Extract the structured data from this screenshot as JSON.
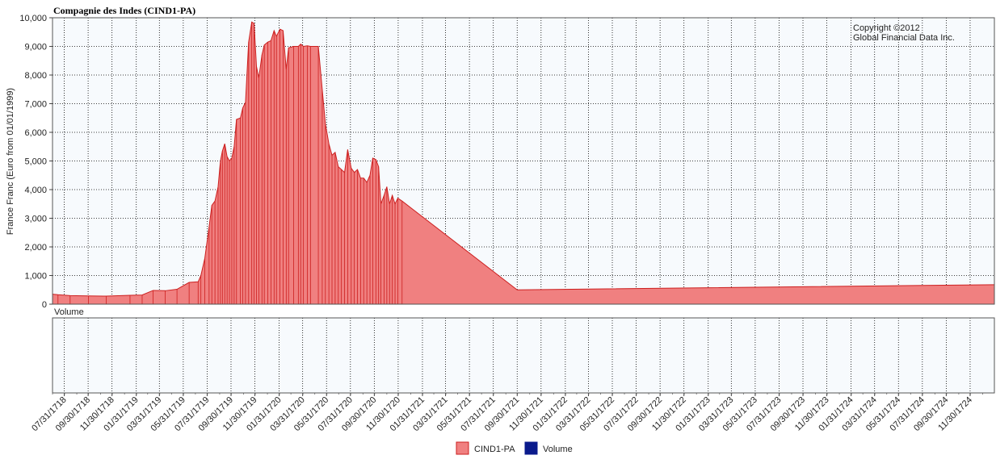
{
  "title": "Compagnie des Indes (CIND1-PA)",
  "copyright": [
    "Copyright ©2012",
    "Global Financial Data Inc."
  ],
  "volume_label": "Volume",
  "colors": {
    "price_fill": "#f08080",
    "price_line": "#cc1f1f",
    "volume": "#0a1a8c",
    "plot_bg": "#f7fafd",
    "grid": "#000000"
  },
  "legend": [
    {
      "label": "CIND1-PA",
      "color": "#f08080",
      "border": "#cc1f1f"
    },
    {
      "label": "Volume",
      "color": "#0a1a8c",
      "border": "#0a1a8c"
    }
  ],
  "chart_data": {
    "type": "area",
    "title": "Compagnie des Indes (CIND1-PA)",
    "ylabel": "France Franc (Euro from 01/01/1999)",
    "xlabel": "",
    "ylim": [
      0,
      10000
    ],
    "yticks": [
      "10,000",
      "9,000",
      "8,000",
      "7,000",
      "6,000",
      "5,000",
      "4,000",
      "3,000",
      "2,000",
      "1,000",
      "0"
    ],
    "xlim": [
      "1718-07-01",
      "1725-01-31"
    ],
    "xtick_labels": [
      "07/31/1718",
      "09/30/1718",
      "11/30/1718",
      "01/31/1719",
      "03/31/1719",
      "05/31/1719",
      "07/31/1719",
      "09/30/1719",
      "11/30/1719",
      "01/31/1720",
      "03/31/1720",
      "05/31/1720",
      "07/31/1720",
      "09/30/1720",
      "11/30/1720",
      "01/31/1721",
      "03/31/1721",
      "05/31/1721",
      "07/31/1721",
      "09/30/1721",
      "11/30/1721",
      "01/31/1722",
      "03/31/1722",
      "05/31/1722",
      "07/31/1722",
      "09/30/1722",
      "11/30/1722",
      "01/31/1723",
      "03/31/1723",
      "05/31/1723",
      "07/31/1723",
      "09/30/1723",
      "11/30/1723",
      "01/31/1724",
      "03/31/1724",
      "05/31/1724",
      "07/31/1724",
      "09/30/1724",
      "11/30/1724"
    ],
    "grid": true,
    "legend_position": "bottom-center",
    "series": [
      {
        "name": "CIND1-PA",
        "points": [
          [
            "1718-07-01",
            350
          ],
          [
            "1718-07-15",
            330
          ],
          [
            "1718-08-15",
            300
          ],
          [
            "1718-10-01",
            290
          ],
          [
            "1718-11-15",
            280
          ],
          [
            "1719-01-15",
            310
          ],
          [
            "1719-02-15",
            320
          ],
          [
            "1719-03-15",
            480
          ],
          [
            "1719-04-15",
            470
          ],
          [
            "1719-05-15",
            520
          ],
          [
            "1719-06-15",
            760
          ],
          [
            "1719-07-08",
            780
          ],
          [
            "1719-07-15",
            1000
          ],
          [
            "1719-07-25",
            1600
          ],
          [
            "1719-08-05",
            2700
          ],
          [
            "1719-08-12",
            3450
          ],
          [
            "1719-08-20",
            3600
          ],
          [
            "1719-08-28",
            4100
          ],
          [
            "1719-09-03",
            5000
          ],
          [
            "1719-09-08",
            5350
          ],
          [
            "1719-09-14",
            5600
          ],
          [
            "1719-09-20",
            5150
          ],
          [
            "1719-09-26",
            5000
          ],
          [
            "1719-10-02",
            5100
          ],
          [
            "1719-10-08",
            5500
          ],
          [
            "1719-10-14",
            6450
          ],
          [
            "1719-10-24",
            6500
          ],
          [
            "1719-10-30",
            6850
          ],
          [
            "1719-11-06",
            7050
          ],
          [
            "1719-11-14",
            9150
          ],
          [
            "1719-11-22",
            9850
          ],
          [
            "1719-11-28",
            9800
          ],
          [
            "1719-12-04",
            8300
          ],
          [
            "1719-12-10",
            7900
          ],
          [
            "1719-12-18",
            8700
          ],
          [
            "1719-12-24",
            9050
          ],
          [
            "1720-01-02",
            9150
          ],
          [
            "1720-01-10",
            9200
          ],
          [
            "1720-01-18",
            9550
          ],
          [
            "1720-01-24",
            9350
          ],
          [
            "1720-02-02",
            9600
          ],
          [
            "1720-02-10",
            9550
          ],
          [
            "1720-02-18",
            8200
          ],
          [
            "1720-02-24",
            8950
          ],
          [
            "1720-03-08",
            9000
          ],
          [
            "1720-03-20",
            9000
          ],
          [
            "1720-03-26",
            9080
          ],
          [
            "1720-04-02",
            9000
          ],
          [
            "1720-04-12",
            9020
          ],
          [
            "1720-04-20",
            9000
          ],
          [
            "1720-05-10",
            9000
          ],
          [
            "1720-05-20",
            7500
          ],
          [
            "1720-05-28",
            6300
          ],
          [
            "1720-06-06",
            5600
          ],
          [
            "1720-06-14",
            5200
          ],
          [
            "1720-06-22",
            5300
          ],
          [
            "1720-06-30",
            4800
          ],
          [
            "1720-07-08",
            4700
          ],
          [
            "1720-07-16",
            4600
          ],
          [
            "1720-07-24",
            5400
          ],
          [
            "1720-08-02",
            4750
          ],
          [
            "1720-08-10",
            4600
          ],
          [
            "1720-08-18",
            4700
          ],
          [
            "1720-08-26",
            4400
          ],
          [
            "1720-09-03",
            4400
          ],
          [
            "1720-09-11",
            4250
          ],
          [
            "1720-09-19",
            4500
          ],
          [
            "1720-09-26",
            5100
          ],
          [
            "1720-10-04",
            5050
          ],
          [
            "1720-10-11",
            4800
          ],
          [
            "1720-10-17",
            3500
          ],
          [
            "1720-10-25",
            3800
          ],
          [
            "1720-11-01",
            4100
          ],
          [
            "1720-11-08",
            3500
          ],
          [
            "1720-11-15",
            3800
          ],
          [
            "1720-11-22",
            3500
          ],
          [
            "1720-11-29",
            3700
          ],
          [
            "1720-12-10",
            3600
          ],
          [
            "1721-09-30",
            500
          ],
          [
            "1725-01-31",
            680
          ]
        ]
      },
      {
        "name": "Volume",
        "points": []
      }
    ]
  }
}
